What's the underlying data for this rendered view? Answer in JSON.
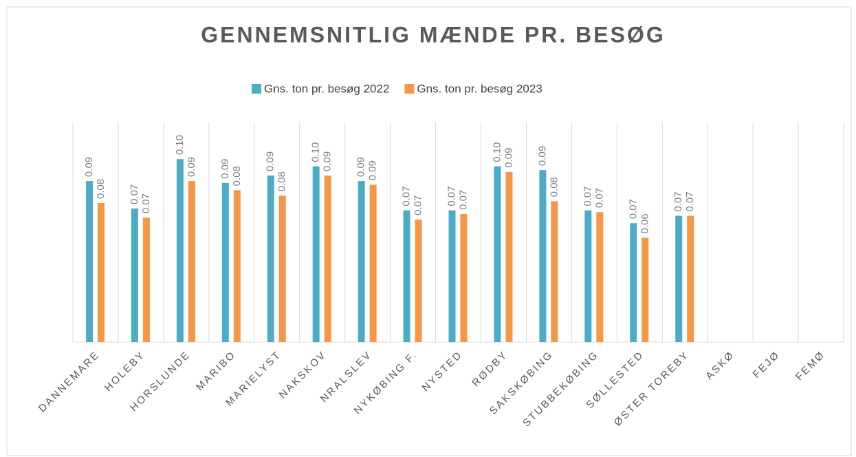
{
  "chart_data": {
    "type": "bar",
    "title": "GENNEMSNITLIG MÆNDE PR. BESØG",
    "categories": [
      "DANNEMARE",
      "HOLEBY",
      "HORSLUNDE",
      "MARIBO",
      "MARIELYST",
      "NAKSKOV",
      "NRALSLEV",
      "NYKØBING F.",
      "NYSTED",
      "RØDBY",
      "SAKSKØBING",
      "STUBBEKØBING",
      "SØLLESTED",
      "ØSTER TOREBY",
      "ASKØ",
      "FEJØ",
      "FEMØ"
    ],
    "series": [
      {
        "name": "Gns. ton pr. besøg 2022",
        "color": "#4bacc6",
        "values": [
          0.088,
          0.073,
          0.1,
          0.087,
          0.091,
          0.096,
          0.088,
          0.072,
          0.072,
          0.096,
          0.094,
          0.072,
          0.065,
          0.069,
          null,
          null,
          null
        ],
        "value_labels": [
          "0.09",
          "0.07",
          "0.10",
          "0.09",
          "0.09",
          "0.10",
          "0.09",
          "0.07",
          "0.07",
          "0.10",
          "0.09",
          "0.07",
          "0.07",
          "0.07",
          null,
          null,
          null
        ]
      },
      {
        "name": "Gns. ton pr. besøg 2023",
        "color": "#f79646",
        "values": [
          0.076,
          0.068,
          0.088,
          0.083,
          0.08,
          0.091,
          0.086,
          0.067,
          0.07,
          0.093,
          0.077,
          0.071,
          0.057,
          0.069,
          null,
          null,
          null
        ],
        "value_labels": [
          "0.08",
          "0.07",
          "0.09",
          "0.08",
          "0.08",
          "0.09",
          "0.09",
          "0.07",
          "0.07",
          "0.09",
          "0.08",
          "0.07",
          "0.06",
          "0.07",
          null,
          null,
          null
        ]
      }
    ],
    "ylim": [
      0,
      0.12
    ],
    "legend": "top"
  }
}
